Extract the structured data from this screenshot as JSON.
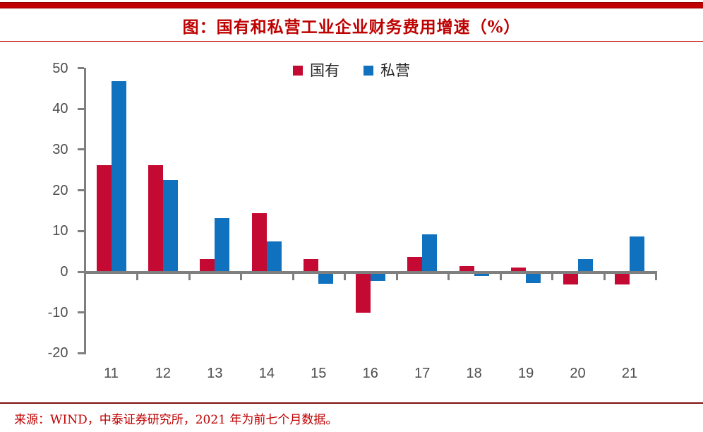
{
  "page": {
    "title": "图：国有和私营工业企业财务费用增速（%）",
    "source_note": "来源：WIND，中泰证券研究所，2021 年为前七个月数据。"
  },
  "colors": {
    "accent_red": "#C00000",
    "bar_red": "#C40A32",
    "bar_blue": "#1072BE",
    "axis_gray": "#7F7F7F",
    "label_gray": "#4d4d4d",
    "divider_dark_red": "#7F1010"
  },
  "chart_data": {
    "type": "bar",
    "title": "图：国有和私营工业企业财务费用增速（%）",
    "categories": [
      "11",
      "12",
      "13",
      "14",
      "15",
      "16",
      "17",
      "18",
      "19",
      "20",
      "21"
    ],
    "series": [
      {
        "name": "国有",
        "color": "#C40A32",
        "values": [
          26.1,
          26.1,
          3.2,
          14.3,
          3.2,
          -10.0,
          3.6,
          1.3,
          1.0,
          -3.2,
          -3.1
        ]
      },
      {
        "name": "私营",
        "color": "#1072BE",
        "values": [
          46.8,
          22.6,
          13.2,
          7.4,
          -2.9,
          -2.3,
          9.1,
          -1.0,
          -2.8,
          3.2,
          8.6
        ]
      }
    ],
    "ylabel": "",
    "xlabel": "",
    "ylim": [
      -20,
      50
    ],
    "yticks": [
      50,
      40,
      30,
      20,
      10,
      0,
      -10,
      -20
    ],
    "legend_position": "top-center",
    "grid": false
  }
}
